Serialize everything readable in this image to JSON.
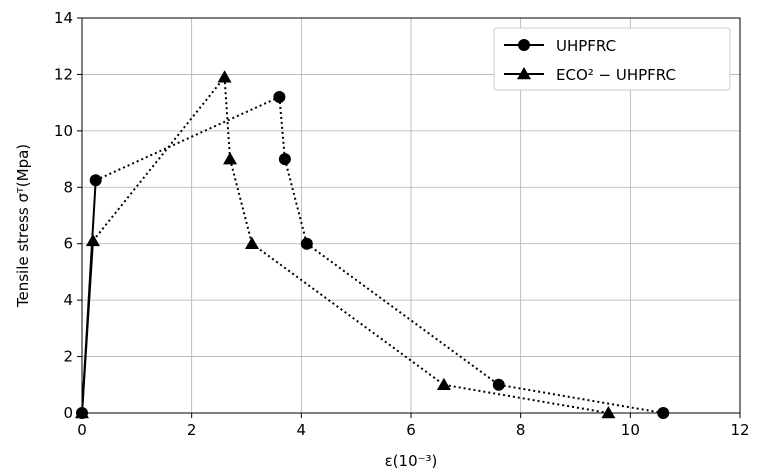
{
  "chart_data": {
    "type": "line",
    "xlabel": "ε(10⁻³)",
    "ylabel": "Tensile stress σᵀ(Mpa)",
    "xlim": [
      0,
      12
    ],
    "ylim": [
      0,
      14
    ],
    "xticks": [
      0,
      2,
      4,
      6,
      8,
      10,
      12
    ],
    "yticks": [
      0,
      2,
      4,
      6,
      8,
      10,
      12,
      14
    ],
    "grid": true,
    "legend_position": "top-right",
    "series": [
      {
        "name": "UHPFRC",
        "marker": "circle",
        "color": "#000000",
        "points": [
          {
            "x": 0.0,
            "y": 0.0,
            "style": "solid"
          },
          {
            "x": 0.25,
            "y": 8.25,
            "style": "solid"
          },
          {
            "x": 3.6,
            "y": 11.2,
            "style": "dotted"
          },
          {
            "x": 3.7,
            "y": 9.0,
            "style": "dotted"
          },
          {
            "x": 4.1,
            "y": 6.0,
            "style": "dotted"
          },
          {
            "x": 7.6,
            "y": 1.0,
            "style": "dotted"
          },
          {
            "x": 10.6,
            "y": 0.0,
            "style": "dotted"
          }
        ]
      },
      {
        "name": "ECO² − UHPFRC",
        "marker": "triangle",
        "color": "#000000",
        "points": [
          {
            "x": 0.0,
            "y": 0.0,
            "style": "solid"
          },
          {
            "x": 0.2,
            "y": 6.1,
            "style": "solid"
          },
          {
            "x": 2.6,
            "y": 11.9,
            "style": "dotted"
          },
          {
            "x": 2.7,
            "y": 9.0,
            "style": "dotted"
          },
          {
            "x": 3.1,
            "y": 6.0,
            "style": "dotted"
          },
          {
            "x": 6.6,
            "y": 1.0,
            "style": "dotted"
          },
          {
            "x": 9.6,
            "y": 0.0,
            "style": "dotted"
          }
        ]
      }
    ]
  }
}
